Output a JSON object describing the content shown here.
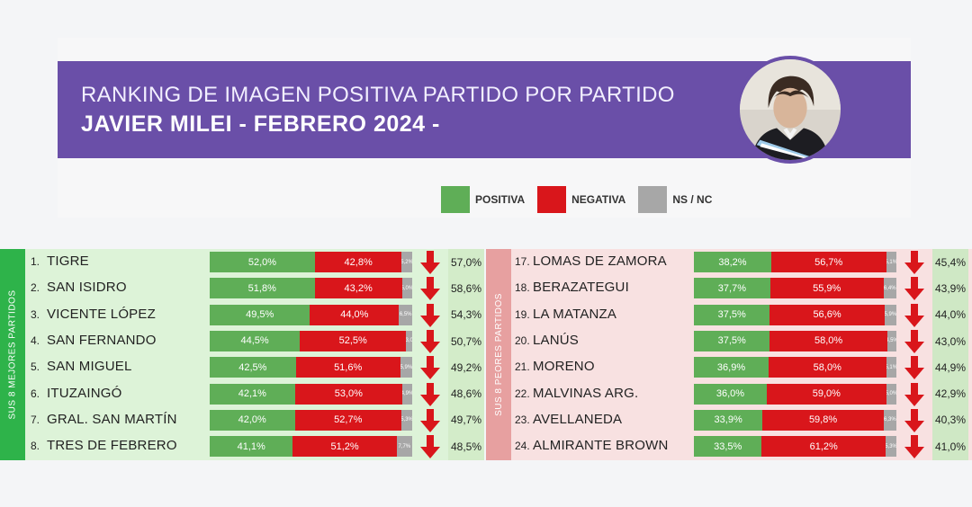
{
  "header": {
    "title_line1": "RANKING DE IMAGEN POSITIVA PARTIDO POR PARTIDO",
    "title_line2": "JAVIER MILEI - FEBRERO 2024 -"
  },
  "legend": [
    {
      "label": "POSITIVA",
      "color": "#5fae57"
    },
    {
      "label": "NEGATIVA",
      "color": "#d9161b"
    },
    {
      "label": "NS / NC",
      "color": "#a7a7a7"
    }
  ],
  "panels": {
    "best_label": "SUS 8 MEJORES PARTIDOS",
    "worst_label": "SUS 8 PEORES PARTIDOS"
  },
  "chart_data": {
    "type": "bar",
    "stacked": true,
    "orientation": "horizontal",
    "title": "RANKING DE IMAGEN POSITIVA PARTIDO POR PARTIDO",
    "subtitle": "JAVIER MILEI - FEBRERO 2024 -",
    "series_names": [
      "POSITIVA",
      "NEGATIVA",
      "NS / NC"
    ],
    "best": [
      {
        "rank": "1.",
        "name": "TIGRE",
        "positive": 52.0,
        "negative": 42.8,
        "nsnc": 5.2,
        "pos_label": "52,0%",
        "neg_label": "42,8%",
        "ns_label": "5,2%",
        "previous": "57,0%"
      },
      {
        "rank": "2.",
        "name": "SAN ISIDRO",
        "positive": 51.8,
        "negative": 43.2,
        "nsnc": 5.0,
        "pos_label": "51,8%",
        "neg_label": "43,2%",
        "ns_label": "5,0%",
        "previous": "58,6%"
      },
      {
        "rank": "3.",
        "name": "VICENTE LÓPEZ",
        "positive": 49.5,
        "negative": 44.0,
        "nsnc": 6.5,
        "pos_label": "49,5%",
        "neg_label": "44,0%",
        "ns_label": "6,5%",
        "previous": "54,3%"
      },
      {
        "rank": "4.",
        "name": "SAN FERNANDO",
        "positive": 44.5,
        "negative": 52.5,
        "nsnc": 3.0,
        "pos_label": "44,5%",
        "neg_label": "52,5%",
        "ns_label": "3,0",
        "previous": "50,7%"
      },
      {
        "rank": "5.",
        "name": "SAN MIGUEL",
        "positive": 42.5,
        "negative": 51.6,
        "nsnc": 5.9,
        "pos_label": "42,5%",
        "neg_label": "51,6%",
        "ns_label": "5,9%",
        "previous": "49,2%"
      },
      {
        "rank": "6.",
        "name": "ITUZAINGÓ",
        "positive": 42.1,
        "negative": 53.0,
        "nsnc": 4.9,
        "pos_label": "42,1%",
        "neg_label": "53,0%",
        "ns_label": "4,9%",
        "previous": "48,6%"
      },
      {
        "rank": "7.",
        "name": "GRAL. SAN MARTÍN",
        "positive": 42.0,
        "negative": 52.7,
        "nsnc": 5.3,
        "pos_label": "42,0%",
        "neg_label": "52,7%",
        "ns_label": "5,3%",
        "previous": "49,7%"
      },
      {
        "rank": "8.",
        "name": "TRES DE FEBRERO",
        "positive": 41.1,
        "negative": 51.2,
        "nsnc": 7.7,
        "pos_label": "41,1%",
        "neg_label": "51,2%",
        "ns_label": "7,7%",
        "previous": "48,5%"
      }
    ],
    "worst": [
      {
        "rank": "17.",
        "name": "LOMAS DE ZAMORA",
        "positive": 38.2,
        "negative": 56.7,
        "nsnc": 5.1,
        "pos_label": "38,2%",
        "neg_label": "56,7%",
        "ns_label": "5,1%",
        "previous": "45,4%"
      },
      {
        "rank": "18.",
        "name": "BERAZATEGUI",
        "positive": 37.7,
        "negative": 55.9,
        "nsnc": 6.4,
        "pos_label": "37,7%",
        "neg_label": "55,9%",
        "ns_label": "6,4%",
        "previous": "43,9%"
      },
      {
        "rank": "19.",
        "name": "LA MATANZA",
        "positive": 37.5,
        "negative": 56.6,
        "nsnc": 5.9,
        "pos_label": "37,5%",
        "neg_label": "56,6%",
        "ns_label": "5,9%",
        "previous": "44,0%"
      },
      {
        "rank": "20.",
        "name": "LANÚS",
        "positive": 37.5,
        "negative": 58.0,
        "nsnc": 4.5,
        "pos_label": "37,5%",
        "neg_label": "58,0%",
        "ns_label": "4,5%",
        "previous": "43,0%"
      },
      {
        "rank": "21.",
        "name": "MORENO",
        "positive": 36.9,
        "negative": 58.0,
        "nsnc": 5.1,
        "pos_label": "36,9%",
        "neg_label": "58,0%",
        "ns_label": "5,1%",
        "previous": "44,9%"
      },
      {
        "rank": "22.",
        "name": "MALVINAS ARG.",
        "positive": 36.0,
        "negative": 59.0,
        "nsnc": 5.0,
        "pos_label": "36,0%",
        "neg_label": "59,0%",
        "ns_label": "5,0%",
        "previous": "42,9%"
      },
      {
        "rank": "23.",
        "name": "AVELLANEDA",
        "positive": 33.9,
        "negative": 59.8,
        "nsnc": 6.3,
        "pos_label": "33,9%",
        "neg_label": "59,8%",
        "ns_label": "6,3%",
        "previous": "40,3%"
      },
      {
        "rank": "24.",
        "name": "ALMIRANTE BROWN",
        "positive": 33.5,
        "negative": 61.2,
        "nsnc": 5.3,
        "pos_label": "33,5%",
        "neg_label": "61,2%",
        "ns_label": "5,3%",
        "previous": "41,0%"
      }
    ]
  },
  "colors": {
    "banner": "#6a4fa8",
    "positive": "#5fae57",
    "negative": "#d9161b",
    "nsnc": "#a7a7a7",
    "best_panel": "#ddf3d8",
    "worst_panel": "#f8e1e1",
    "arrow": "#d9161b"
  },
  "icons": {
    "trend": "down-arrow-icon",
    "portrait": "portrait-photo"
  }
}
